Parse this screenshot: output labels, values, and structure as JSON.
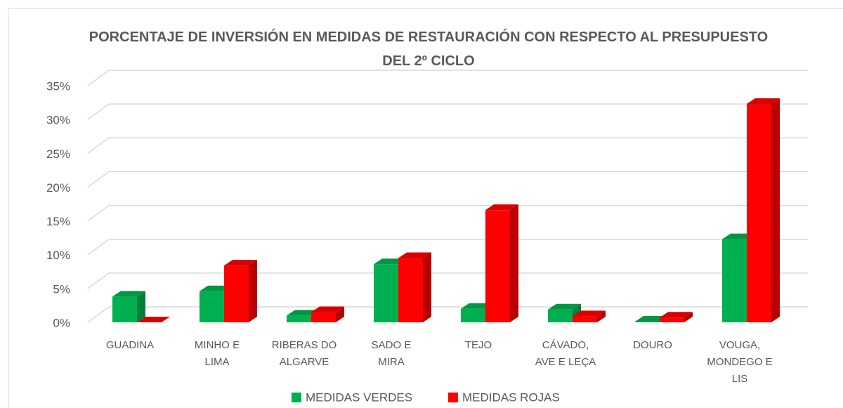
{
  "chart_data": {
    "type": "bar3d",
    "title": "PORCENTAJE DE INVERSIÓN EN MEDIDAS  DE RESTAURACIÓN CON RESPECTO AL PRESUPUESTO DEL 2º CICLO",
    "categories": [
      "GUADINA",
      "MINHO E LIMA",
      "RIBERAS DO ALGARVE",
      "SADO E MIRA",
      "TEJO",
      "CÁVADO, AVE E LEÇA",
      "DOURO",
      "VOUGA, MONDEGO E LIS"
    ],
    "series": [
      {
        "name": "MEDIDAS VERDES",
        "color": "#00b050",
        "values": [
          3.8,
          4.6,
          1.0,
          8.6,
          2.0,
          1.9,
          0.1,
          12.3
        ]
      },
      {
        "name": "MEDIDAS ROJAS",
        "color": "#ff0000",
        "values": [
          0.0,
          8.4,
          1.5,
          9.5,
          16.6,
          0.9,
          0.7,
          32.3
        ]
      }
    ],
    "ylim": [
      0,
      35
    ],
    "yticks": [
      {
        "value": 0,
        "label": "0%"
      },
      {
        "value": 5,
        "label": "5%"
      },
      {
        "value": 10,
        "label": "10%"
      },
      {
        "value": 15,
        "label": "15%"
      },
      {
        "value": 20,
        "label": "20%"
      },
      {
        "value": 25,
        "label": "25%"
      },
      {
        "value": 30,
        "label": "30%"
      },
      {
        "value": 35,
        "label": "35%"
      }
    ],
    "grid": true,
    "legend": "bottom"
  }
}
